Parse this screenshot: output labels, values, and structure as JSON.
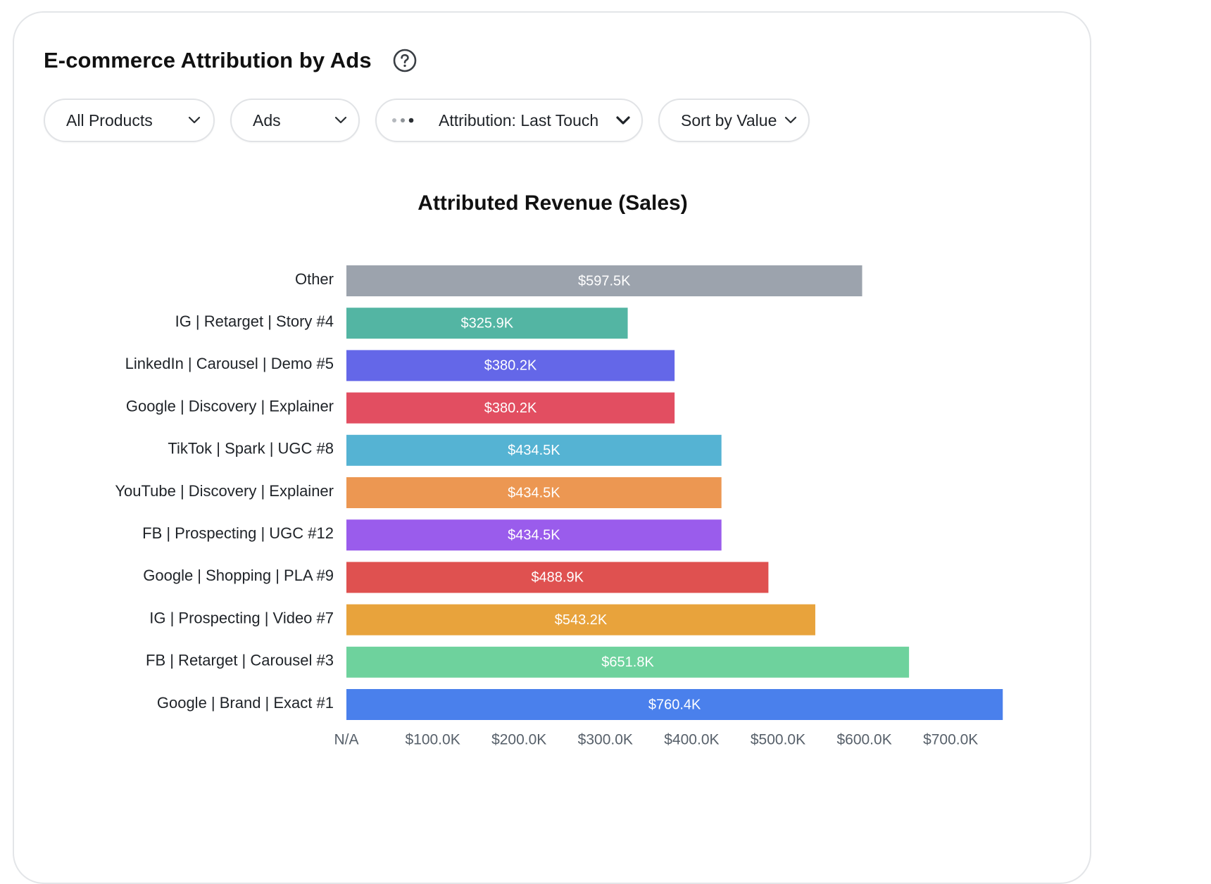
{
  "header": {
    "title": "E-commerce Attribution by Ads",
    "help_icon": "question-circle-icon"
  },
  "filters": {
    "products": "All Products",
    "level": "Ads",
    "attribution": "Attribution: Last Touch",
    "sort": "Sort by Value"
  },
  "chart_data": {
    "type": "bar",
    "orientation": "horizontal",
    "title": "Attributed Revenue (Sales)",
    "xlabel": "",
    "ylabel": "",
    "xlim": [
      0,
      760.4
    ],
    "grid": false,
    "legend": "none",
    "unit": "$K",
    "categories": [
      "Other",
      "IG | Retarget | Story #4",
      "LinkedIn | Carousel | Demo #5",
      "Google | Discovery | Explainer",
      "TikTok | Spark | UGC #8",
      "YouTube | Discovery | Explainer",
      "FB | Prospecting | UGC #12",
      "Google | Shopping | PLA #9",
      "IG | Prospecting | Video #7",
      "FB | Retarget | Carousel #3",
      "Google | Brand | Exact #1"
    ],
    "values": [
      597.5,
      325.9,
      380.2,
      380.2,
      434.5,
      434.5,
      434.5,
      488.9,
      543.2,
      651.8,
      760.4
    ],
    "value_labels": [
      "$597.5K",
      "$325.9K",
      "$380.2K",
      "$380.2K",
      "$434.5K",
      "$434.5K",
      "$434.5K",
      "$488.9K",
      "$543.2K",
      "$651.8K",
      "$760.4K"
    ],
    "colors": [
      "#9ca3ad",
      "#53b5a3",
      "#6467e8",
      "#e24e61",
      "#55b3d3",
      "#ec9752",
      "#9a5cec",
      "#df5150",
      "#e8a33c",
      "#6ed29d",
      "#4a80ec"
    ],
    "xticks": [
      0,
      100,
      200,
      300,
      400,
      500,
      600,
      700
    ],
    "xtick_labels": [
      "N/A",
      "$100.0K",
      "$200.0K",
      "$300.0K",
      "$400.0K",
      "$500.0K",
      "$600.0K",
      "$700.0K"
    ]
  }
}
